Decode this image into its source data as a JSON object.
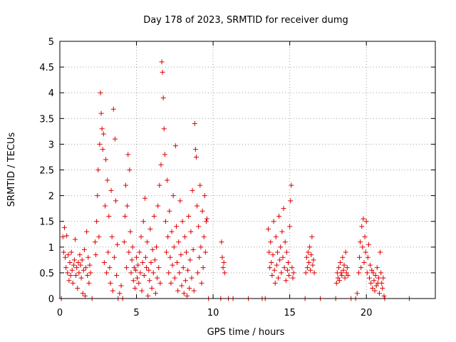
{
  "chart_data": {
    "type": "scatter",
    "title": "Day 178 of 2023, SRMTID for receiver dumg",
    "xlabel": "GPS time / hours",
    "ylabel": "SRMTID / TECUs",
    "xlim": [
      0,
      24.5
    ],
    "ylim": [
      0,
      5
    ],
    "xticks": [
      0,
      5,
      10,
      15,
      20
    ],
    "xtick_labels": [
      "0",
      "5",
      "10",
      "15",
      "20"
    ],
    "yticks": [
      0,
      0.5,
      1,
      1.5,
      2,
      2.5,
      3,
      3.5,
      4,
      4.5,
      5
    ],
    "ytick_labels": [
      "0",
      "0.5",
      "1",
      "1.5",
      "2",
      "2.5",
      "3",
      "3.5",
      "4",
      "4.5",
      "5"
    ],
    "grid": true,
    "marker": "plus",
    "color": "#e00000",
    "series": [
      {
        "name": "SRMTID",
        "points": [
          [
            0.1,
            0
          ],
          [
            0.2,
            1.2
          ],
          [
            0.25,
            0.9
          ],
          [
            0.3,
            1.38
          ],
          [
            0.35,
            0.8
          ],
          [
            0.4,
            0.6
          ],
          [
            0.45,
            1.22
          ],
          [
            0.5,
            0.5
          ],
          [
            0.55,
            0.85
          ],
          [
            0.6,
            0.35
          ],
          [
            0.65,
            0.7
          ],
          [
            0.7,
            0.45
          ],
          [
            0.75,
            0.9
          ],
          [
            0.8,
            0.55
          ],
          [
            0.85,
            0.3
          ],
          [
            0.9,
            0.65
          ],
          [
            0.95,
            0.75
          ],
          [
            1.0,
            1.15
          ],
          [
            1.05,
            0.45
          ],
          [
            1.1,
            0.6
          ],
          [
            1.15,
            0.2
          ],
          [
            1.2,
            0.7
          ],
          [
            1.25,
            0.5
          ],
          [
            1.3,
            0.85
          ],
          [
            1.35,
            0.65
          ],
          [
            1.4,
            0.4
          ],
          [
            1.45,
            0.75
          ],
          [
            1.5,
            0.1
          ],
          [
            1.55,
            0.55
          ],
          [
            1.6,
            0.95
          ],
          [
            1.65,
            0.05
          ],
          [
            1.7,
            0.6
          ],
          [
            1.75,
            1.3
          ],
          [
            1.8,
            0.45
          ],
          [
            1.85,
            0.8
          ],
          [
            1.9,
            0.3
          ],
          [
            1.95,
            0.65
          ],
          [
            2.0,
            0.5
          ],
          [
            2.1,
            0.0
          ],
          [
            2.3,
            1.1
          ],
          [
            2.35,
            0.85
          ],
          [
            2.4,
            1.5
          ],
          [
            2.45,
            2.0
          ],
          [
            2.5,
            2.5
          ],
          [
            2.55,
            1.2
          ],
          [
            2.6,
            3.0
          ],
          [
            2.65,
            4.0
          ],
          [
            2.7,
            3.6
          ],
          [
            2.75,
            3.3
          ],
          [
            2.8,
            2.9
          ],
          [
            2.85,
            3.2
          ],
          [
            2.9,
            0.7
          ],
          [
            2.95,
            1.8
          ],
          [
            3.0,
            2.7
          ],
          [
            3.05,
            0.5
          ],
          [
            3.1,
            2.3
          ],
          [
            3.15,
            0.9
          ],
          [
            3.2,
            1.6
          ],
          [
            3.25,
            0.6
          ],
          [
            3.3,
            0.3
          ],
          [
            3.35,
            2.1
          ],
          [
            3.4,
            1.2
          ],
          [
            3.45,
            0.15
          ],
          [
            3.5,
            3.68
          ],
          [
            3.55,
            0.8
          ],
          [
            3.6,
            3.1
          ],
          [
            3.65,
            1.9
          ],
          [
            3.7,
            0.45
          ],
          [
            3.75,
            1.05
          ],
          [
            3.8,
            0.0
          ],
          [
            3.9,
            0.1
          ],
          [
            4.0,
            0.25
          ],
          [
            4.1,
            0.0
          ],
          [
            4.2,
            1.1
          ],
          [
            4.25,
            1.6
          ],
          [
            4.3,
            2.2
          ],
          [
            4.35,
            0.6
          ],
          [
            4.4,
            1.8
          ],
          [
            4.45,
            2.8
          ],
          [
            4.5,
            0.9
          ],
          [
            4.55,
            2.5
          ],
          [
            4.6,
            1.3
          ],
          [
            4.65,
            0.5
          ],
          [
            4.7,
            0.75
          ],
          [
            4.75,
            1.0
          ],
          [
            4.8,
            0.35
          ],
          [
            4.85,
            0.6
          ],
          [
            4.9,
            0.2
          ],
          [
            4.95,
            0.55
          ],
          [
            5.0,
            0.8
          ],
          [
            5.05,
            0.4
          ],
          [
            5.1,
            0.65
          ],
          [
            5.15,
            0.3
          ],
          [
            5.2,
            0.9
          ],
          [
            5.25,
            0.5
          ],
          [
            5.3,
            1.2
          ],
          [
            5.35,
            0.15
          ],
          [
            5.4,
            0.7
          ],
          [
            5.45,
            1.5
          ],
          [
            5.5,
            0.45
          ],
          [
            5.55,
            1.95
          ],
          [
            5.6,
            0.8
          ],
          [
            5.65,
            0.6
          ],
          [
            5.7,
            1.1
          ],
          [
            5.75,
            0.05
          ],
          [
            5.8,
            0.55
          ],
          [
            5.85,
            0.35
          ],
          [
            5.9,
            1.35
          ],
          [
            5.95,
            0.7
          ],
          [
            6.0,
            0.2
          ],
          [
            6.05,
            0.95
          ],
          [
            6.1,
            0.5
          ],
          [
            6.15,
            1.6
          ],
          [
            6.2,
            0.75
          ],
          [
            6.25,
            0.1
          ],
          [
            6.3,
            1.0
          ],
          [
            6.35,
            0.4
          ],
          [
            6.4,
            1.8
          ],
          [
            6.45,
            0.6
          ],
          [
            6.5,
            2.2
          ],
          [
            6.55,
            0.3
          ],
          [
            6.6,
            2.6
          ],
          [
            6.65,
            4.6
          ],
          [
            6.7,
            4.4
          ],
          [
            6.75,
            3.9
          ],
          [
            6.8,
            3.3
          ],
          [
            6.85,
            2.8
          ],
          [
            6.9,
            1.5
          ],
          [
            6.95,
            0.9
          ],
          [
            7.0,
            2.3
          ],
          [
            7.05,
            1.2
          ],
          [
            7.1,
            0.5
          ],
          [
            7.15,
            1.7
          ],
          [
            7.2,
            0.8
          ],
          [
            7.25,
            0.3
          ],
          [
            7.3,
            1.3
          ],
          [
            7.35,
            0.65
          ],
          [
            7.4,
            2.0
          ],
          [
            7.45,
            1.0
          ],
          [
            7.5,
            0.4
          ],
          [
            7.55,
            2.97
          ],
          [
            7.6,
            1.4
          ],
          [
            7.65,
            0.7
          ],
          [
            7.7,
            0.15
          ],
          [
            7.75,
            1.1
          ],
          [
            7.8,
            0.5
          ],
          [
            7.85,
            1.9
          ],
          [
            7.9,
            0.85
          ],
          [
            7.95,
            0.25
          ],
          [
            8.0,
            1.5
          ],
          [
            8.05,
            0.6
          ],
          [
            8.1,
            0.1
          ],
          [
            8.15,
            1.2
          ],
          [
            8.2,
            0.35
          ],
          [
            8.25,
            0.9
          ],
          [
            8.3,
            0.05
          ],
          [
            8.35,
            0.55
          ],
          [
            8.4,
            1.6
          ],
          [
            8.45,
            0.2
          ],
          [
            8.5,
            0.75
          ],
          [
            8.55,
            1.3
          ],
          [
            8.6,
            0.4
          ],
          [
            8.65,
            2.1
          ],
          [
            8.7,
            0.95
          ],
          [
            8.75,
            0.15
          ],
          [
            8.8,
            3.4
          ],
          [
            8.85,
            2.9
          ],
          [
            8.9,
            2.75
          ],
          [
            8.95,
            1.8
          ],
          [
            9.0,
            0.5
          ],
          [
            9.05,
            1.4
          ],
          [
            9.1,
            0.8
          ],
          [
            9.15,
            2.2
          ],
          [
            9.2,
            1.0
          ],
          [
            9.25,
            0.3
          ],
          [
            9.3,
            1.7
          ],
          [
            9.35,
            0.6
          ],
          [
            9.4,
            1.2
          ],
          [
            9.45,
            2.0
          ],
          [
            9.5,
            0.9
          ],
          [
            9.55,
            1.5
          ],
          [
            9.6,
            1.55
          ],
          [
            9.7,
            0.0
          ],
          [
            10.5,
            0.0
          ],
          [
            10.55,
            1.1
          ],
          [
            10.6,
            0.8
          ],
          [
            10.65,
            0.6
          ],
          [
            10.7,
            0.7
          ],
          [
            10.75,
            0.5
          ],
          [
            11.0,
            0.0
          ],
          [
            11.3,
            0.0
          ],
          [
            12.3,
            0.0
          ],
          [
            13.2,
            0.0
          ],
          [
            13.4,
            0.0
          ],
          [
            13.6,
            1.35
          ],
          [
            13.65,
            0.9
          ],
          [
            13.7,
            0.6
          ],
          [
            13.75,
            1.1
          ],
          [
            13.8,
            0.7
          ],
          [
            13.85,
            0.45
          ],
          [
            13.9,
            0.85
          ],
          [
            13.95,
            1.5
          ],
          [
            14.0,
            0.55
          ],
          [
            14.05,
            0.3
          ],
          [
            14.1,
            1.2
          ],
          [
            14.15,
            0.65
          ],
          [
            14.2,
            0.9
          ],
          [
            14.25,
            0.4
          ],
          [
            14.3,
            1.6
          ],
          [
            14.35,
            0.75
          ],
          [
            14.4,
            1.0
          ],
          [
            14.45,
            0.5
          ],
          [
            14.5,
            1.3
          ],
          [
            14.55,
            0.8
          ],
          [
            14.6,
            1.75
          ],
          [
            14.65,
            0.6
          ],
          [
            14.7,
            1.1
          ],
          [
            14.75,
            0.35
          ],
          [
            14.8,
            0.9
          ],
          [
            14.85,
            0.55
          ],
          [
            14.9,
            0.7
          ],
          [
            14.95,
            0.45
          ],
          [
            15.0,
            1.4
          ],
          [
            15.05,
            1.9
          ],
          [
            15.1,
            2.2
          ],
          [
            15.15,
            0.6
          ],
          [
            15.2,
            0.4
          ],
          [
            15.25,
            0.5
          ],
          [
            16.0,
            0.0
          ],
          [
            16.05,
            0.5
          ],
          [
            16.1,
            0.8
          ],
          [
            16.15,
            0.6
          ],
          [
            16.2,
            0.9
          ],
          [
            16.25,
            0.7
          ],
          [
            16.3,
            1.0
          ],
          [
            16.35,
            0.55
          ],
          [
            16.4,
            0.85
          ],
          [
            16.45,
            1.2
          ],
          [
            16.5,
            0.65
          ],
          [
            16.55,
            0.75
          ],
          [
            16.6,
            0.5
          ],
          [
            17.0,
            0.0
          ],
          [
            18.0,
            0.0
          ],
          [
            18.05,
            0.3
          ],
          [
            18.1,
            0.5
          ],
          [
            18.15,
            0.4
          ],
          [
            18.2,
            0.6
          ],
          [
            18.25,
            0.35
          ],
          [
            18.3,
            0.7
          ],
          [
            18.35,
            0.5
          ],
          [
            18.4,
            0.45
          ],
          [
            18.45,
            0.8
          ],
          [
            18.5,
            0.55
          ],
          [
            18.55,
            0.65
          ],
          [
            18.6,
            0.4
          ],
          [
            18.65,
            0.9
          ],
          [
            18.7,
            0.5
          ],
          [
            18.75,
            0.6
          ],
          [
            18.8,
            0.45
          ],
          [
            19.0,
            0.0
          ],
          [
            19.3,
            0.0
          ],
          [
            19.4,
            0.1
          ],
          [
            19.5,
            0.5
          ],
          [
            19.55,
            0.8
          ],
          [
            19.6,
            1.1
          ],
          [
            19.65,
            0.6
          ],
          [
            19.7,
            1.4
          ],
          [
            19.75,
            1.0
          ],
          [
            19.8,
            1.55
          ],
          [
            19.85,
            0.7
          ],
          [
            19.9,
            1.2
          ],
          [
            19.95,
            0.9
          ],
          [
            20.0,
            1.5
          ],
          [
            20.05,
            0.5
          ],
          [
            20.1,
            0.8
          ],
          [
            20.15,
            1.05
          ],
          [
            20.2,
            0.4
          ],
          [
            20.25,
            0.65
          ],
          [
            20.3,
            0.3
          ],
          [
            20.35,
            0.55
          ],
          [
            20.4,
            0.2
          ],
          [
            20.45,
            0.5
          ],
          [
            20.5,
            0.35
          ],
          [
            20.55,
            0.15
          ],
          [
            20.6,
            0.45
          ],
          [
            20.65,
            0.25
          ],
          [
            20.7,
            0.6
          ],
          [
            20.75,
            0.3
          ],
          [
            20.8,
            0.4
          ],
          [
            20.85,
            0.1
          ],
          [
            20.9,
            0.9
          ],
          [
            20.95,
            0.5
          ],
          [
            21.0,
            0.3
          ],
          [
            21.05,
            0.2
          ],
          [
            21.1,
            0.4
          ],
          [
            21.15,
            0.05
          ],
          [
            21.2,
            0.0
          ],
          [
            22.8,
            0.0
          ]
        ]
      }
    ]
  }
}
